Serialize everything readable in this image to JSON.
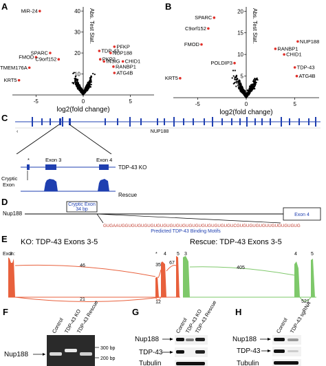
{
  "panels": {
    "A": {
      "letter": "A",
      "xlabel": "log2(fold change)",
      "ylabel": "Abs. Test Stat.",
      "xticks": [
        "-5",
        "0",
        "5"
      ],
      "yticks": [
        "40",
        "30",
        "20",
        "10"
      ],
      "red_labels": [
        {
          "text": "MiR-24",
          "x": -4.6,
          "y": 40
        },
        {
          "text": "PFKP",
          "x": 3.3,
          "y": 23
        },
        {
          "text": "TDP-43",
          "x": 1.7,
          "y": 21
        },
        {
          "text": "NUP188",
          "x": 2.9,
          "y": 20
        },
        {
          "text": "SPARC",
          "x": -3.5,
          "y": 20
        },
        {
          "text": "FMOD",
          "x": -5.0,
          "y": 18
        },
        {
          "text": "C9orf152",
          "x": -2.6,
          "y": 17
        },
        {
          "text": "PKP2",
          "x": 1.8,
          "y": 17
        },
        {
          "text": "INSIG",
          "x": 2.2,
          "y": 16
        },
        {
          "text": "CHID1",
          "x": 4.2,
          "y": 16
        },
        {
          "text": "RANBP1",
          "x": 3.2,
          "y": 13.5
        },
        {
          "text": "ATG4B",
          "x": 3.3,
          "y": 10.5
        },
        {
          "text": "TMEM176A",
          "x": -5.7,
          "y": 13
        },
        {
          "text": "KRT5",
          "x": -6.8,
          "y": 7
        }
      ]
    },
    "B": {
      "letter": "B",
      "xlabel": "log2(fold change)",
      "ylabel": "Abs. Test Stat.",
      "xticks": [
        "-5",
        "0",
        "5"
      ],
      "yticks": [
        "20",
        "15",
        "10",
        "5"
      ],
      "red_labels": [
        {
          "text": "SPARC",
          "x": -3.3,
          "y": 18.5
        },
        {
          "text": "C9orf152",
          "x": -3.9,
          "y": 16
        },
        {
          "text": "NUP188",
          "x": 5.3,
          "y": 13
        },
        {
          "text": "FMOD",
          "x": -4.6,
          "y": 12.3
        },
        {
          "text": "RANBP1",
          "x": 3.0,
          "y": 11.3
        },
        {
          "text": "CHID1",
          "x": 3.9,
          "y": 10
        },
        {
          "text": "POLDIP3",
          "x": -1.2,
          "y": 8
        },
        {
          "text": "TDP-43",
          "x": 5.0,
          "y": 7
        },
        {
          "text": "ATG4B",
          "x": 5.2,
          "y": 5
        },
        {
          "text": "KRT5",
          "x": -6.8,
          "y": 4.5
        }
      ]
    },
    "C": {
      "letter": "C",
      "gene": "NUP188",
      "exon3": "Exon 3",
      "exon4": "Exon 4",
      "star": "*",
      "cryptic": "Cryptic Exon",
      "ko": "TDP-43 KO",
      "rescue": "Rescue"
    },
    "D": {
      "letter": "D",
      "gene": "Nup188",
      "cryptic_exon": "Cryptic Exon",
      "bp": "34 bp",
      "exon4": "Exon 4",
      "sequence": "GUGAAUGGUGUGUGUGUGUGUGUGUGUGUGUGUGUGUGUGUCGUGUGUGUGUUGUGUGUGUG",
      "motif": "Predicted TDP-43 Binding Motifs"
    },
    "E": {
      "letter": "E",
      "ko_title": "KO: TDP-43 Exons 3-5",
      "rescue_title": "Rescue: TDP-43 Exons 3-5",
      "exon_label": "Exon:",
      "ko_exons": [
        "3",
        "*",
        "4",
        "5"
      ],
      "rescue_exons": [
        "3",
        "4",
        "5"
      ],
      "ko_counts": [
        "46",
        "35",
        "67",
        "21",
        "12"
      ],
      "rescue_counts": [
        "405",
        "521"
      ]
    },
    "F": {
      "letter": "F",
      "lanes": [
        "Control",
        "TDP-43 KO",
        "TDP-43 Rescue"
      ],
      "band": "Nup188",
      "markers": [
        "300 bp",
        "200 bp"
      ]
    },
    "G": {
      "letter": "G",
      "lanes": [
        "Control",
        "TDP-43 KO",
        "TDP-43 Rescue"
      ],
      "rows": [
        "Nup188",
        "TDP-43",
        "Tubulin"
      ]
    },
    "H": {
      "letter": "H",
      "lanes": [
        "Control",
        "TDP-43 sgRNA"
      ],
      "rows": [
        "Nup188",
        "TDP-43",
        "Tubulin"
      ]
    }
  },
  "colors": {
    "red": "#e0302a",
    "blue": "#1f3fb0",
    "green": "#7ec86a",
    "orange": "#e8603c"
  }
}
